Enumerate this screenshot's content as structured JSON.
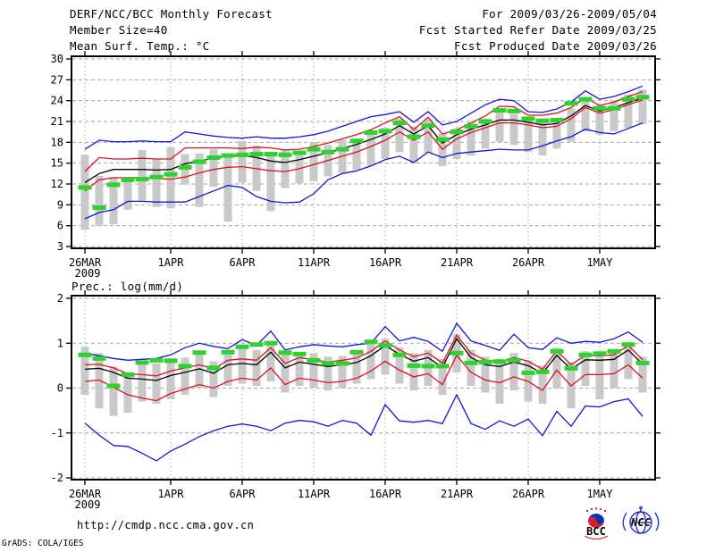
{
  "header": {
    "left": [
      "DERF/NCC/BCC Monthly Forecast",
      "Member Size=40",
      "Mean Surf. Temp.: °C"
    ],
    "right": [
      "For 2009/03/26-2009/05/04",
      "Fcst Started Refer Date 2009/03/25",
      "Fcst Produced Date 2009/03/26"
    ]
  },
  "footer": {
    "url": "http://cmdp.ncc.cma.gov.cn",
    "credit": "GrADS: COLA/IGES",
    "logo_bcc_label": "BCC",
    "logo_ncc_label": "NCC"
  },
  "colors": {
    "line_blue": "#1515d8",
    "line_red": "#e01020",
    "line_black": "#000000",
    "obs_green": "#2ed22e",
    "spread_gray": "#c9c9c9",
    "grid": "#a6a6a6",
    "frame": "#000000"
  },
  "chart_data": [
    {
      "type": "line",
      "title": "Mean Surf. Temp.: °C",
      "ylabel": "°C",
      "ylim": [
        3,
        30
      ],
      "yticks": [
        3,
        6,
        9,
        12,
        15,
        18,
        21,
        24,
        27,
        30
      ],
      "xtick_labels": [
        "26MAR",
        "1APR",
        "6APR",
        "11APR",
        "16APR",
        "21APR",
        "26APR",
        "1MAY"
      ],
      "xtick_days": [
        0,
        6,
        11,
        16,
        21,
        26,
        31,
        36
      ],
      "x_year_label": "2009",
      "n_days": 40,
      "grid": true,
      "series": [
        {
          "name": "ensemble-max",
          "color": "line_blue",
          "values": [
            17.0,
            18.3,
            18.1,
            18.1,
            18.2,
            18.1,
            18.1,
            19.5,
            19.2,
            18.9,
            18.7,
            18.6,
            18.8,
            18.6,
            18.6,
            18.8,
            19.1,
            19.6,
            20.3,
            21.0,
            21.7,
            22.0,
            22.4,
            20.9,
            22.4,
            20.5,
            21.0,
            22.2,
            23.4,
            24.2,
            24.0,
            22.4,
            22.3,
            22.8,
            23.8,
            25.4,
            24.2,
            24.6,
            25.3,
            26.1
          ]
        },
        {
          "name": "plus-spread",
          "color": "line_red",
          "values": [
            13.8,
            15.8,
            15.6,
            15.6,
            15.7,
            15.6,
            15.6,
            17.2,
            17.2,
            17.2,
            17.2,
            17.1,
            17.3,
            17.2,
            16.9,
            17.0,
            17.4,
            17.9,
            18.5,
            19.1,
            19.8,
            20.8,
            21.7,
            19.8,
            21.6,
            19.2,
            19.8,
            20.8,
            21.8,
            23.2,
            23.1,
            21.9,
            21.9,
            22.2,
            23.0,
            24.4,
            23.3,
            23.8,
            24.6,
            25.3
          ]
        },
        {
          "name": "ensemble-mean",
          "color": "line_black",
          "values": [
            12.2,
            13.5,
            14.1,
            14.1,
            14.1,
            14.0,
            14.1,
            14.9,
            15.3,
            15.7,
            16.0,
            16.1,
            15.8,
            15.3,
            15.1,
            15.5,
            16.0,
            16.5,
            17.1,
            17.7,
            18.4,
            19.2,
            20.4,
            19.2,
            20.4,
            17.9,
            19.1,
            19.9,
            20.5,
            21.2,
            21.2,
            20.9,
            20.5,
            20.7,
            21.8,
            23.3,
            22.5,
            23.0,
            23.7,
            24.4
          ]
        },
        {
          "name": "minus-spread",
          "color": "line_red",
          "values": [
            11.0,
            12.6,
            12.9,
            12.9,
            12.9,
            12.8,
            12.7,
            13.0,
            13.6,
            14.1,
            14.4,
            14.5,
            14.2,
            13.9,
            13.8,
            14.2,
            14.8,
            15.4,
            16.0,
            16.6,
            17.4,
            18.3,
            19.5,
            18.3,
            19.5,
            17.0,
            18.5,
            19.4,
            20.1,
            20.8,
            20.8,
            20.5,
            20.1,
            20.3,
            21.4,
            23.0,
            22.2,
            22.7,
            23.4,
            24.1
          ]
        },
        {
          "name": "ensemble-min",
          "color": "line_blue",
          "values": [
            7.0,
            7.9,
            8.3,
            9.5,
            9.5,
            9.4,
            9.4,
            9.4,
            10.2,
            11.0,
            11.8,
            11.5,
            10.2,
            9.5,
            9.3,
            9.4,
            10.6,
            12.6,
            13.5,
            13.9,
            14.6,
            15.5,
            16.0,
            15.1,
            16.6,
            15.8,
            16.4,
            16.6,
            16.8,
            17.0,
            16.9,
            16.9,
            17.5,
            18.2,
            18.8,
            19.9,
            19.4,
            19.2,
            20.0,
            20.8
          ]
        }
      ],
      "obs_dashes": {
        "name": "observation",
        "color": "obs_green",
        "values": [
          11.5,
          8.6,
          11.9,
          12.6,
          12.7,
          13.0,
          13.4,
          14.4,
          15.2,
          15.8,
          16.1,
          16.2,
          16.3,
          16.3,
          16.2,
          16.5,
          17.0,
          16.6,
          17.0,
          18.2,
          19.4,
          19.6,
          20.8,
          18.8,
          20.4,
          18.4,
          19.5,
          20.3,
          21.0,
          22.6,
          22.5,
          21.4,
          21.1,
          21.2,
          23.6,
          24.2,
          22.9,
          22.9,
          24.2,
          24.5
        ]
      },
      "spread_bars": {
        "lo": [
          5.4,
          6.0,
          6.2,
          8.3,
          9.6,
          8.7,
          8.5,
          11.9,
          8.7,
          11.6,
          6.6,
          12.2,
          11.0,
          8.1,
          11.4,
          12.1,
          12.4,
          13.1,
          13.6,
          14.1,
          14.6,
          15.6,
          16.6,
          15.1,
          16.5,
          14.6,
          15.6,
          16.1,
          17.1,
          18.1,
          17.6,
          16.6,
          16.1,
          17.1,
          18.1,
          19.6,
          19.1,
          19.6,
          20.1,
          20.6
        ],
        "hi": [
          16.2,
          13.2,
          13.0,
          13.0,
          16.9,
          15.6,
          17.3,
          16.3,
          16.4,
          17.0,
          16.2,
          18.2,
          17.5,
          16.0,
          17.0,
          16.6,
          18.0,
          17.6,
          18.4,
          18.1,
          19.2,
          20.1,
          21.4,
          20.3,
          21.3,
          19.3,
          20.0,
          20.9,
          21.4,
          22.4,
          22.1,
          21.4,
          21.0,
          21.5,
          22.9,
          24.4,
          23.4,
          24.1,
          24.9,
          25.6
        ]
      }
    },
    {
      "type": "line",
      "title": "Prec.: log(mm/d)",
      "ylabel": "log(mm/d)",
      "ylim": [
        -2,
        2
      ],
      "yticks": [
        -2,
        -1,
        0,
        1,
        2
      ],
      "xtick_labels": [
        "26MAR",
        "1APR",
        "6APR",
        "11APR",
        "16APR",
        "21APR",
        "26APR",
        "1MAY"
      ],
      "xtick_days": [
        0,
        6,
        11,
        16,
        21,
        26,
        31,
        36
      ],
      "x_year_label": "2009",
      "n_days": 40,
      "grid": true,
      "series": [
        {
          "name": "ensemble-max",
          "color": "line_blue",
          "values": [
            0.78,
            0.72,
            0.66,
            0.62,
            0.64,
            0.66,
            0.74,
            0.9,
            1.0,
            0.93,
            0.88,
            1.08,
            0.95,
            1.27,
            0.85,
            0.92,
            0.97,
            0.94,
            0.92,
            0.97,
            1.0,
            1.37,
            1.05,
            1.13,
            1.04,
            0.82,
            1.44,
            1.05,
            0.95,
            0.84,
            1.2,
            0.9,
            0.86,
            1.12,
            1.0,
            1.04,
            1.02,
            1.1,
            1.25,
            1.02
          ]
        },
        {
          "name": "plus-spread",
          "color": "line_red",
          "values": [
            0.52,
            0.53,
            0.45,
            0.32,
            0.3,
            0.27,
            0.38,
            0.45,
            0.52,
            0.43,
            0.62,
            0.65,
            0.62,
            0.9,
            0.55,
            0.68,
            0.63,
            0.58,
            0.62,
            0.67,
            0.82,
            1.05,
            0.85,
            0.7,
            0.78,
            0.56,
            1.18,
            0.78,
            0.62,
            0.58,
            0.68,
            0.6,
            0.42,
            0.83,
            0.52,
            0.73,
            0.72,
            0.74,
            0.95,
            0.63
          ]
        },
        {
          "name": "ensemble-mean",
          "color": "line_black",
          "values": [
            0.42,
            0.44,
            0.35,
            0.22,
            0.2,
            0.17,
            0.28,
            0.35,
            0.43,
            0.33,
            0.52,
            0.55,
            0.52,
            0.8,
            0.45,
            0.58,
            0.53,
            0.48,
            0.52,
            0.57,
            0.72,
            0.95,
            0.75,
            0.6,
            0.68,
            0.46,
            1.1,
            0.68,
            0.52,
            0.48,
            0.58,
            0.5,
            0.33,
            0.73,
            0.42,
            0.63,
            0.62,
            0.64,
            0.85,
            0.53
          ]
        },
        {
          "name": "minus-spread",
          "color": "line_red",
          "values": [
            0.15,
            0.18,
            0.02,
            -0.15,
            -0.22,
            -0.28,
            -0.12,
            -0.02,
            0.08,
            0.0,
            0.15,
            0.22,
            0.18,
            0.45,
            0.08,
            0.22,
            0.18,
            0.12,
            0.15,
            0.22,
            0.38,
            0.6,
            0.4,
            0.25,
            0.32,
            0.08,
            0.73,
            0.35,
            0.18,
            0.12,
            0.25,
            0.15,
            -0.05,
            0.4,
            0.05,
            0.3,
            0.3,
            0.32,
            0.52,
            0.22
          ]
        },
        {
          "name": "ensemble-min",
          "color": "line_blue",
          "values": [
            -0.78,
            -1.05,
            -1.28,
            -1.3,
            -1.45,
            -1.62,
            -1.4,
            -1.25,
            -1.08,
            -0.95,
            -0.85,
            -0.8,
            -0.85,
            -0.95,
            -0.78,
            -0.72,
            -0.75,
            -0.85,
            -0.72,
            -0.78,
            -1.05,
            -0.37,
            -0.73,
            -0.76,
            -0.72,
            -0.79,
            -0.15,
            -0.79,
            -0.92,
            -0.73,
            -0.85,
            -0.69,
            -1.06,
            -0.52,
            -0.85,
            -0.4,
            -0.42,
            -0.3,
            -0.24,
            -0.63
          ]
        }
      ],
      "obs_dashes": {
        "name": "observation",
        "color": "obs_green",
        "values": [
          0.74,
          0.66,
          0.05,
          0.3,
          0.57,
          0.62,
          0.61,
          0.49,
          0.79,
          0.45,
          0.8,
          0.92,
          0.97,
          1.0,
          0.79,
          0.76,
          0.62,
          0.55,
          0.55,
          0.8,
          1.03,
          0.95,
          0.74,
          0.5,
          0.49,
          0.49,
          0.78,
          0.56,
          0.58,
          0.59,
          0.62,
          0.34,
          0.36,
          0.82,
          0.44,
          0.74,
          0.77,
          0.82,
          0.97,
          0.56
        ]
      },
      "spread_bars": {
        "lo": [
          -0.15,
          -0.45,
          -0.62,
          -0.55,
          -0.3,
          -0.35,
          -0.25,
          -0.15,
          0.0,
          -0.2,
          0.05,
          0.1,
          0.05,
          0.15,
          -0.1,
          0.05,
          0.0,
          -0.05,
          0.0,
          0.1,
          0.2,
          0.3,
          0.1,
          -0.05,
          0.05,
          -0.15,
          0.35,
          0.05,
          -0.1,
          -0.35,
          -0.05,
          -0.3,
          -0.35,
          0.0,
          -0.45,
          0.05,
          -0.25,
          0.0,
          0.2,
          -0.1
        ],
        "hi": [
          0.92,
          0.78,
          0.48,
          0.35,
          0.6,
          0.55,
          0.62,
          0.68,
          0.8,
          0.6,
          0.85,
          0.95,
          0.85,
          1.05,
          0.75,
          0.8,
          0.78,
          0.7,
          0.72,
          0.85,
          1.05,
          1.1,
          0.9,
          0.78,
          0.85,
          0.65,
          1.2,
          0.85,
          0.7,
          0.65,
          0.78,
          0.62,
          0.5,
          0.9,
          0.58,
          0.82,
          0.78,
          0.82,
          1.02,
          0.7
        ]
      }
    }
  ]
}
